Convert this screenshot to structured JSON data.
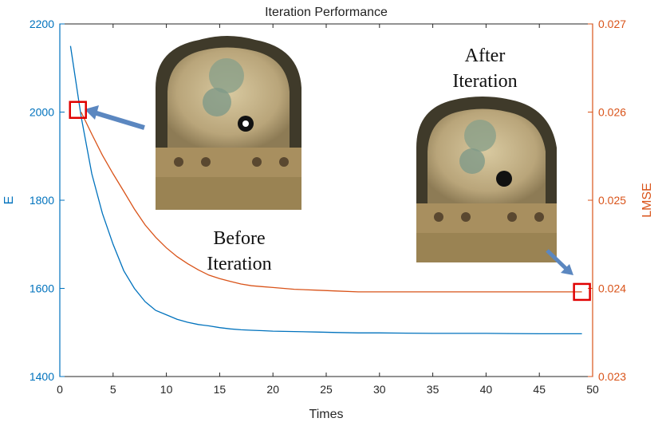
{
  "chart_data": {
    "type": "line",
    "title": "Iteration Performance",
    "xlabel": "Times",
    "xlim": [
      0,
      50
    ],
    "xticks": [
      0,
      5,
      10,
      15,
      20,
      25,
      30,
      35,
      40,
      45,
      50
    ],
    "grid": false,
    "legend": "none",
    "left_axis": {
      "label": "E",
      "lim": [
        1400,
        2200
      ],
      "ticks": [
        "1400",
        "1600",
        "1800",
        "2000",
        "2200"
      ],
      "color": "#0072BD"
    },
    "right_axis": {
      "label": "LMSE",
      "lim": [
        0.023,
        0.027
      ],
      "ticks": [
        "0.023",
        "0.024",
        "0.025",
        "0.026",
        "0.027"
      ],
      "color": "#D95319"
    },
    "series": [
      {
        "axis": "left",
        "color": "#0072BD",
        "x": [
          1,
          2,
          3,
          4,
          5,
          6,
          7,
          8,
          9,
          10,
          11,
          12,
          13,
          14,
          15,
          16,
          17,
          18,
          19,
          20,
          22,
          24,
          26,
          28,
          30,
          35,
          40,
          45,
          49
        ],
        "y": [
          2150,
          1990,
          1860,
          1770,
          1700,
          1640,
          1600,
          1570,
          1550,
          1540,
          1530,
          1523,
          1518,
          1515,
          1511,
          1508,
          1506,
          1505,
          1504,
          1503,
          1502,
          1501,
          1500,
          1499,
          1499,
          1498,
          1498,
          1497,
          1497
        ]
      },
      {
        "axis": "right",
        "color": "#D95319",
        "x": [
          2,
          3,
          4,
          5,
          6,
          7,
          8,
          9,
          10,
          11,
          12,
          13,
          14,
          15,
          16,
          17,
          18,
          19,
          20,
          22,
          24,
          26,
          28,
          30,
          35,
          40,
          45,
          49
        ],
        "y": [
          0.026,
          0.02575,
          0.02551,
          0.0253,
          0.0251,
          0.0249,
          0.02472,
          0.02458,
          0.02446,
          0.02436,
          0.02428,
          0.02421,
          0.02415,
          0.02411,
          0.02408,
          0.02405,
          0.02403,
          0.02402,
          0.02401,
          0.02399,
          0.02398,
          0.02397,
          0.02396,
          0.02396,
          0.02396,
          0.02396,
          0.02396,
          0.02396
        ]
      }
    ],
    "markers": [
      {
        "axis": "left",
        "x": 1.7,
        "y": 2005,
        "shape": "square",
        "color": "#E00000"
      },
      {
        "axis": "right",
        "x": 49,
        "y": 0.02396,
        "shape": "square",
        "color": "#E00000"
      }
    ],
    "annotations": [
      {
        "text": [
          "Before",
          "Iteration"
        ]
      },
      {
        "text": [
          "After",
          "Iteration"
        ]
      }
    ],
    "inset_images": [
      {
        "description": "before iteration",
        "near": "upper-left"
      },
      {
        "description": "after iteration",
        "near": "right"
      }
    ]
  },
  "colors": {
    "left_axis": "#0072BD",
    "right_axis": "#D95319",
    "marker": "#E00000",
    "arrow": "#5B87C0"
  }
}
